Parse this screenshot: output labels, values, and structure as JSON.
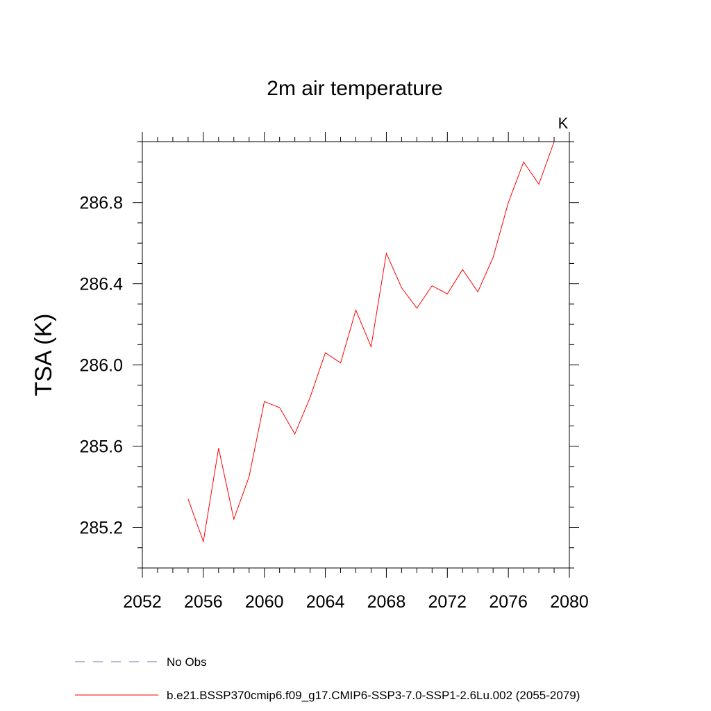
{
  "chart_data": {
    "type": "line",
    "title": "2m air temperature",
    "ylabel": "TSA  (K)",
    "xlabel": "",
    "units_label": "K",
    "xlim": [
      2052,
      2080
    ],
    "ylim": [
      285.0,
      287.1
    ],
    "x_ticks": [
      "2052",
      "2056",
      "2060",
      "2064",
      "2068",
      "2072",
      "2076",
      "2080"
    ],
    "y_ticks": [
      "285.2",
      "285.6",
      "286.0",
      "286.4",
      "286.8"
    ],
    "grid": false,
    "series": [
      {
        "name": "b.e21.BSSP370cmip6.f09_g17.CMIP6-SSP3-7.0-SSP1-2.6Lu.002 (2055-2079)",
        "color": "#ff0000",
        "x": [
          2055,
          2056,
          2057,
          2058,
          2059,
          2060,
          2061,
          2062,
          2063,
          2064,
          2065,
          2066,
          2067,
          2068,
          2069,
          2070,
          2071,
          2072,
          2073,
          2074,
          2075,
          2076,
          2077,
          2078,
          2079
        ],
        "values": [
          285.34,
          285.13,
          285.59,
          285.24,
          285.45,
          285.82,
          285.79,
          285.66,
          285.84,
          286.06,
          286.01,
          286.27,
          286.09,
          286.55,
          286.38,
          286.28,
          286.39,
          286.35,
          286.47,
          286.36,
          286.53,
          286.8,
          287.0,
          286.89,
          287.1
        ]
      }
    ],
    "legend": [
      {
        "label": "No Obs",
        "color": "#7a6fb0",
        "style": "dashed"
      },
      {
        "label": "b.e21.BSSP370cmip6.f09_g17.CMIP6-SSP3-7.0-SSP1-2.6Lu.002 (2055-2079)",
        "color": "#ff0000",
        "style": "solid"
      }
    ]
  }
}
